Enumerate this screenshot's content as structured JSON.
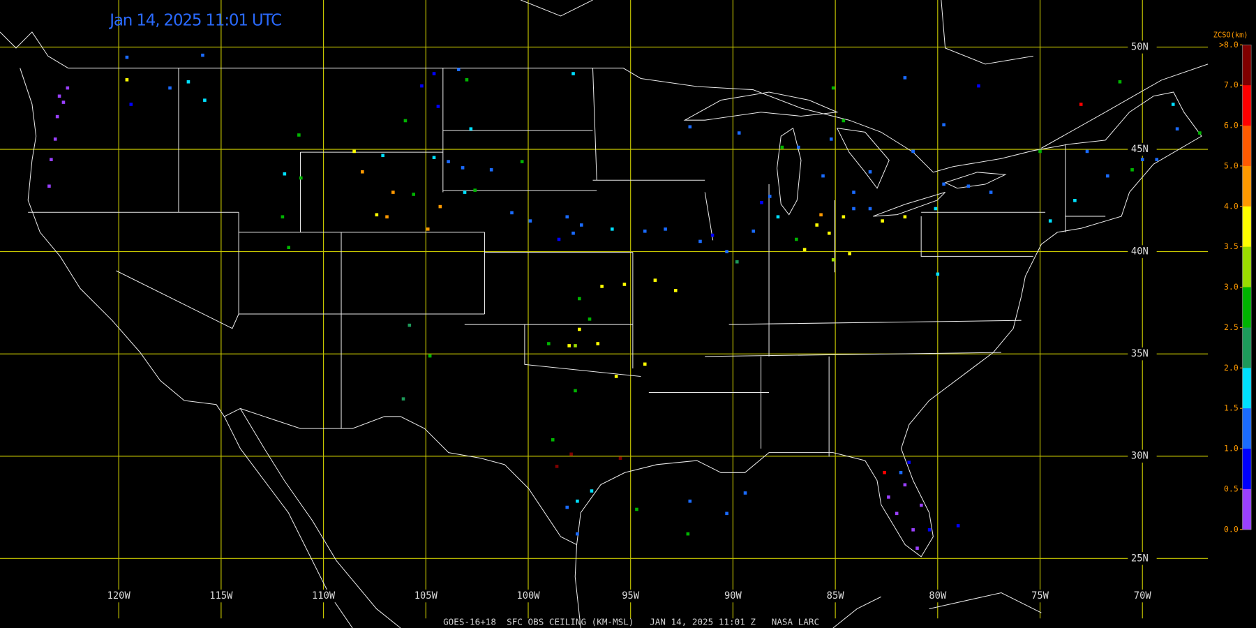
{
  "header": {
    "timestamp": "Jan 14, 2025 11:01 UTC"
  },
  "map": {
    "lon_range": [
      -125.8,
      -66.8
    ],
    "lat_range": [
      21.6,
      52.3
    ],
    "grid": true,
    "grid_color": "#c8c800",
    "lon_ticks": [
      {
        "value": -120,
        "label": "120W"
      },
      {
        "value": -115,
        "label": "115W"
      },
      {
        "value": -110,
        "label": "110W"
      },
      {
        "value": -105,
        "label": "105W"
      },
      {
        "value": -100,
        "label": "100W"
      },
      {
        "value": -95,
        "label": "95W"
      },
      {
        "value": -90,
        "label": "90W"
      },
      {
        "value": -85,
        "label": "85W"
      },
      {
        "value": -80,
        "label": "80W"
      },
      {
        "value": -75,
        "label": "75W"
      },
      {
        "value": -70,
        "label": "70W"
      }
    ],
    "lat_ticks": [
      {
        "value": 50,
        "label": "50N"
      },
      {
        "value": 45,
        "label": "45N"
      },
      {
        "value": 40,
        "label": "40N"
      },
      {
        "value": 35,
        "label": "35N"
      },
      {
        "value": 30,
        "label": "30N"
      },
      {
        "value": 25,
        "label": "25N"
      }
    ],
    "stations": [
      {
        "lon": -119.6,
        "lat": 49.5,
        "color": "#1a6bff"
      },
      {
        "lon": -122.9,
        "lat": 47.6,
        "color": "#9a40ff"
      },
      {
        "lon": -122.7,
        "lat": 47.3,
        "color": "#9a40ff"
      },
      {
        "lon": -122.5,
        "lat": 48.0,
        "color": "#9a40ff"
      },
      {
        "lon": -123.0,
        "lat": 46.6,
        "color": "#9a40ff"
      },
      {
        "lon": -123.1,
        "lat": 45.5,
        "color": "#9a40ff"
      },
      {
        "lon": -123.3,
        "lat": 44.5,
        "color": "#9a40ff"
      },
      {
        "lon": -123.4,
        "lat": 43.2,
        "color": "#9a40ff"
      },
      {
        "lon": -119.6,
        "lat": 48.4,
        "color": "#ffff00"
      },
      {
        "lon": -119.4,
        "lat": 47.2,
        "color": "#0000ff"
      },
      {
        "lon": -117.5,
        "lat": 48.0,
        "color": "#1a6bff"
      },
      {
        "lon": -116.6,
        "lat": 48.3,
        "color": "#00e0ff"
      },
      {
        "lon": -115.9,
        "lat": 49.6,
        "color": "#1a6bff"
      },
      {
        "lon": -115.8,
        "lat": 47.4,
        "color": "#00e0ff"
      },
      {
        "lon": -111.2,
        "lat": 45.7,
        "color": "#00b400"
      },
      {
        "lon": -111.9,
        "lat": 43.8,
        "color": "#00e0ff"
      },
      {
        "lon": -111.1,
        "lat": 43.6,
        "color": "#00b400"
      },
      {
        "lon": -112.0,
        "lat": 41.7,
        "color": "#00b400"
      },
      {
        "lon": -111.7,
        "lat": 40.2,
        "color": "#00b400"
      },
      {
        "lon": -105.2,
        "lat": 48.1,
        "color": "#0000ff"
      },
      {
        "lon": -104.6,
        "lat": 48.7,
        "color": "#0000ff"
      },
      {
        "lon": -103.0,
        "lat": 48.4,
        "color": "#00b400"
      },
      {
        "lon": -103.4,
        "lat": 48.9,
        "color": "#1a6bff"
      },
      {
        "lon": -106.0,
        "lat": 46.4,
        "color": "#00b400"
      },
      {
        "lon": -104.4,
        "lat": 47.1,
        "color": "#0000ff"
      },
      {
        "lon": -102.8,
        "lat": 46.0,
        "color": "#00e0ff"
      },
      {
        "lon": -97.8,
        "lat": 48.7,
        "color": "#00e0ff"
      },
      {
        "lon": -108.5,
        "lat": 44.9,
        "color": "#ffff00"
      },
      {
        "lon": -108.1,
        "lat": 43.9,
        "color": "#ff9900"
      },
      {
        "lon": -107.1,
        "lat": 44.7,
        "color": "#00e0ff"
      },
      {
        "lon": -106.6,
        "lat": 42.9,
        "color": "#ff9900"
      },
      {
        "lon": -105.6,
        "lat": 42.8,
        "color": "#00b400"
      },
      {
        "lon": -107.4,
        "lat": 41.8,
        "color": "#ffff00"
      },
      {
        "lon": -106.9,
        "lat": 41.7,
        "color": "#ff9900"
      },
      {
        "lon": -104.9,
        "lat": 41.1,
        "color": "#ff9900"
      },
      {
        "lon": -104.3,
        "lat": 42.2,
        "color": "#ff9900"
      },
      {
        "lon": -104.6,
        "lat": 44.6,
        "color": "#00e0ff"
      },
      {
        "lon": -103.9,
        "lat": 44.4,
        "color": "#1a6bff"
      },
      {
        "lon": -103.2,
        "lat": 44.1,
        "color": "#1a6bff"
      },
      {
        "lon": -101.8,
        "lat": 44.0,
        "color": "#1a6bff"
      },
      {
        "lon": -100.3,
        "lat": 44.4,
        "color": "#00b400"
      },
      {
        "lon": -103.1,
        "lat": 42.9,
        "color": "#00e0ff"
      },
      {
        "lon": -102.6,
        "lat": 43.0,
        "color": "#00b400"
      },
      {
        "lon": -100.8,
        "lat": 41.9,
        "color": "#1a6bff"
      },
      {
        "lon": -99.9,
        "lat": 41.5,
        "color": "#1a6bff"
      },
      {
        "lon": -98.1,
        "lat": 41.7,
        "color": "#1a6bff"
      },
      {
        "lon": -97.4,
        "lat": 41.3,
        "color": "#1a6bff"
      },
      {
        "lon": -95.9,
        "lat": 41.1,
        "color": "#00e0ff"
      },
      {
        "lon": -98.5,
        "lat": 40.6,
        "color": "#0000ff"
      },
      {
        "lon": -97.8,
        "lat": 40.9,
        "color": "#1a6bff"
      },
      {
        "lon": -96.4,
        "lat": 38.3,
        "color": "#ffff00"
      },
      {
        "lon": -95.3,
        "lat": 38.4,
        "color": "#ffff00"
      },
      {
        "lon": -97.5,
        "lat": 37.7,
        "color": "#00b400"
      },
      {
        "lon": -97.0,
        "lat": 36.7,
        "color": "#00b400"
      },
      {
        "lon": -97.5,
        "lat": 36.2,
        "color": "#ffff00"
      },
      {
        "lon": -98.0,
        "lat": 35.4,
        "color": "#ffff00"
      },
      {
        "lon": -97.7,
        "lat": 35.4,
        "color": "#9adc00"
      },
      {
        "lon": -96.6,
        "lat": 35.5,
        "color": "#ffff00"
      },
      {
        "lon": -99.0,
        "lat": 35.5,
        "color": "#00b400"
      },
      {
        "lon": -95.7,
        "lat": 33.9,
        "color": "#ffff00"
      },
      {
        "lon": -94.3,
        "lat": 34.5,
        "color": "#ffff00"
      },
      {
        "lon": -93.8,
        "lat": 38.6,
        "color": "#ffff00"
      },
      {
        "lon": -92.8,
        "lat": 38.1,
        "color": "#ffff00"
      },
      {
        "lon": -97.7,
        "lat": 33.2,
        "color": "#00b400"
      },
      {
        "lon": -98.8,
        "lat": 30.8,
        "color": "#00b400"
      },
      {
        "lon": -97.9,
        "lat": 30.1,
        "color": "#800000"
      },
      {
        "lon": -98.6,
        "lat": 29.5,
        "color": "#800000"
      },
      {
        "lon": -95.5,
        "lat": 29.9,
        "color": "#800000"
      },
      {
        "lon": -97.6,
        "lat": 27.8,
        "color": "#00e0ff"
      },
      {
        "lon": -98.1,
        "lat": 27.5,
        "color": "#1a6bff"
      },
      {
        "lon": -97.6,
        "lat": 26.2,
        "color": "#1a6bff"
      },
      {
        "lon": -96.9,
        "lat": 28.3,
        "color": "#00e0ff"
      },
      {
        "lon": -94.7,
        "lat": 27.4,
        "color": "#00b400"
      },
      {
        "lon": -92.1,
        "lat": 27.8,
        "color": "#1a6bff"
      },
      {
        "lon": -92.2,
        "lat": 26.2,
        "color": "#00b400"
      },
      {
        "lon": -89.4,
        "lat": 28.2,
        "color": "#1a6bff"
      },
      {
        "lon": -90.3,
        "lat": 27.2,
        "color": "#1a6bff"
      },
      {
        "lon": -105.8,
        "lat": 36.4,
        "color": "#1d9a5a"
      },
      {
        "lon": -104.8,
        "lat": 34.9,
        "color": "#00b400"
      },
      {
        "lon": -106.1,
        "lat": 32.8,
        "color": "#1d9a5a"
      },
      {
        "lon": -94.3,
        "lat": 41.0,
        "color": "#1a6bff"
      },
      {
        "lon": -93.3,
        "lat": 41.1,
        "color": "#1a6bff"
      },
      {
        "lon": -91.6,
        "lat": 40.5,
        "color": "#1a6bff"
      },
      {
        "lon": -91.0,
        "lat": 40.8,
        "color": "#0000ff"
      },
      {
        "lon": -90.3,
        "lat": 40.0,
        "color": "#1a6bff"
      },
      {
        "lon": -89.8,
        "lat": 39.5,
        "color": "#1d9a5a"
      },
      {
        "lon": -89.0,
        "lat": 41.0,
        "color": "#1a6bff"
      },
      {
        "lon": -88.6,
        "lat": 42.4,
        "color": "#0000ff"
      },
      {
        "lon": -88.2,
        "lat": 42.7,
        "color": "#1a6bff"
      },
      {
        "lon": -87.8,
        "lat": 41.7,
        "color": "#00e0ff"
      },
      {
        "lon": -86.9,
        "lat": 40.6,
        "color": "#00b400"
      },
      {
        "lon": -86.5,
        "lat": 40.1,
        "color": "#ffff00"
      },
      {
        "lon": -85.9,
        "lat": 41.3,
        "color": "#ffff00"
      },
      {
        "lon": -85.3,
        "lat": 40.9,
        "color": "#ffff00"
      },
      {
        "lon": -84.6,
        "lat": 41.7,
        "color": "#ffff00"
      },
      {
        "lon": -85.1,
        "lat": 39.6,
        "color": "#9adc00"
      },
      {
        "lon": -84.3,
        "lat": 39.9,
        "color": "#ffff00"
      },
      {
        "lon": -85.7,
        "lat": 41.8,
        "color": "#ff9900"
      },
      {
        "lon": -84.1,
        "lat": 42.1,
        "color": "#1a6bff"
      },
      {
        "lon": -83.3,
        "lat": 42.1,
        "color": "#1a6bff"
      },
      {
        "lon": -82.7,
        "lat": 41.5,
        "color": "#ffff00"
      },
      {
        "lon": -81.6,
        "lat": 41.7,
        "color": "#ffff00"
      },
      {
        "lon": -85.1,
        "lat": 48.0,
        "color": "#00b400"
      },
      {
        "lon": -86.8,
        "lat": 45.1,
        "color": "#1a6bff"
      },
      {
        "lon": -85.2,
        "lat": 45.5,
        "color": "#1a6bff"
      },
      {
        "lon": -84.6,
        "lat": 46.4,
        "color": "#00b400"
      },
      {
        "lon": -87.6,
        "lat": 45.1,
        "color": "#00b400"
      },
      {
        "lon": -89.7,
        "lat": 45.8,
        "color": "#1a6bff"
      },
      {
        "lon": -92.1,
        "lat": 46.1,
        "color": "#1a6bff"
      },
      {
        "lon": -85.6,
        "lat": 43.7,
        "color": "#1a6bff"
      },
      {
        "lon": -84.1,
        "lat": 42.9,
        "color": "#1a6bff"
      },
      {
        "lon": -83.3,
        "lat": 43.9,
        "color": "#1a6bff"
      },
      {
        "lon": -81.6,
        "lat": 48.5,
        "color": "#1a6bff"
      },
      {
        "lon": -78.0,
        "lat": 48.1,
        "color": "#0000ff"
      },
      {
        "lon": -79.7,
        "lat": 46.2,
        "color": "#1a6bff"
      },
      {
        "lon": -81.2,
        "lat": 44.9,
        "color": "#1a6bff"
      },
      {
        "lon": -79.7,
        "lat": 43.3,
        "color": "#1a6bff"
      },
      {
        "lon": -78.5,
        "lat": 43.2,
        "color": "#1a6bff"
      },
      {
        "lon": -77.4,
        "lat": 42.9,
        "color": "#1a6bff"
      },
      {
        "lon": -80.1,
        "lat": 42.1,
        "color": "#00e0ff"
      },
      {
        "lon": -80.0,
        "lat": 38.9,
        "color": "#00e0ff"
      },
      {
        "lon": -75.0,
        "lat": 44.9,
        "color": "#00b400"
      },
      {
        "lon": -74.5,
        "lat": 41.5,
        "color": "#00e0ff"
      },
      {
        "lon": -73.3,
        "lat": 42.5,
        "color": "#00e0ff"
      },
      {
        "lon": -72.7,
        "lat": 44.9,
        "color": "#1a6bff"
      },
      {
        "lon": -71.7,
        "lat": 43.7,
        "color": "#1a6bff"
      },
      {
        "lon": -71.1,
        "lat": 48.3,
        "color": "#00b400"
      },
      {
        "lon": -68.5,
        "lat": 47.2,
        "color": "#00e0ff"
      },
      {
        "lon": -68.3,
        "lat": 46.0,
        "color": "#1a6bff"
      },
      {
        "lon": -70.0,
        "lat": 44.5,
        "color": "#1a6bff"
      },
      {
        "lon": -67.2,
        "lat": 45.8,
        "color": "#00b400"
      },
      {
        "lon": -73.0,
        "lat": 47.2,
        "color": "#ff0000"
      },
      {
        "lon": -70.5,
        "lat": 44.0,
        "color": "#00b400"
      },
      {
        "lon": -69.3,
        "lat": 44.5,
        "color": "#1a6bff"
      },
      {
        "lon": -82.4,
        "lat": 28.0,
        "color": "#9a40ff"
      },
      {
        "lon": -82.0,
        "lat": 27.2,
        "color": "#9a40ff"
      },
      {
        "lon": -81.6,
        "lat": 28.6,
        "color": "#9a40ff"
      },
      {
        "lon": -81.2,
        "lat": 26.4,
        "color": "#9a40ff"
      },
      {
        "lon": -81.0,
        "lat": 25.5,
        "color": "#9a40ff"
      },
      {
        "lon": -81.8,
        "lat": 29.2,
        "color": "#1a6bff"
      },
      {
        "lon": -81.4,
        "lat": 29.7,
        "color": "#0000ff"
      },
      {
        "lon": -80.8,
        "lat": 27.6,
        "color": "#9a40ff"
      },
      {
        "lon": -80.4,
        "lat": 26.4,
        "color": "#0000ff"
      },
      {
        "lon": -79.0,
        "lat": 26.6,
        "color": "#0000ff"
      },
      {
        "lon": -82.6,
        "lat": 29.2,
        "color": "#ff0000"
      }
    ]
  },
  "colorbar": {
    "title": "ZCSO(km)",
    "ticks": [
      {
        "value": 8,
        "label": ">8.0"
      },
      {
        "value": 7,
        "label": "7.0"
      },
      {
        "value": 6,
        "label": "6.0"
      },
      {
        "value": 5,
        "label": "5.0"
      },
      {
        "value": 4,
        "label": "4.0"
      },
      {
        "value": 3.5,
        "label": "3.5"
      },
      {
        "value": 3,
        "label": "3.0"
      },
      {
        "value": 2.5,
        "label": "2.5"
      },
      {
        "value": 2,
        "label": "2.0"
      },
      {
        "value": 1.5,
        "label": "1.5"
      },
      {
        "value": 1,
        "label": "1.0"
      },
      {
        "value": 0.5,
        "label": "0.5"
      },
      {
        "value": 0,
        "label": "0.0"
      }
    ],
    "colors": [
      "#800000",
      "#ff0000",
      "#ff5a00",
      "#ff9900",
      "#ffff00",
      "#9adc00",
      "#00b400",
      "#1d9a5a",
      "#00e0ff",
      "#1a6bff",
      "#0000ff",
      "#9a40ff"
    ]
  },
  "footer": "GOES-16+18  SFC OBS CEILING (KM-MSL)   JAN 14, 2025 11:01 Z   NASA LARC"
}
